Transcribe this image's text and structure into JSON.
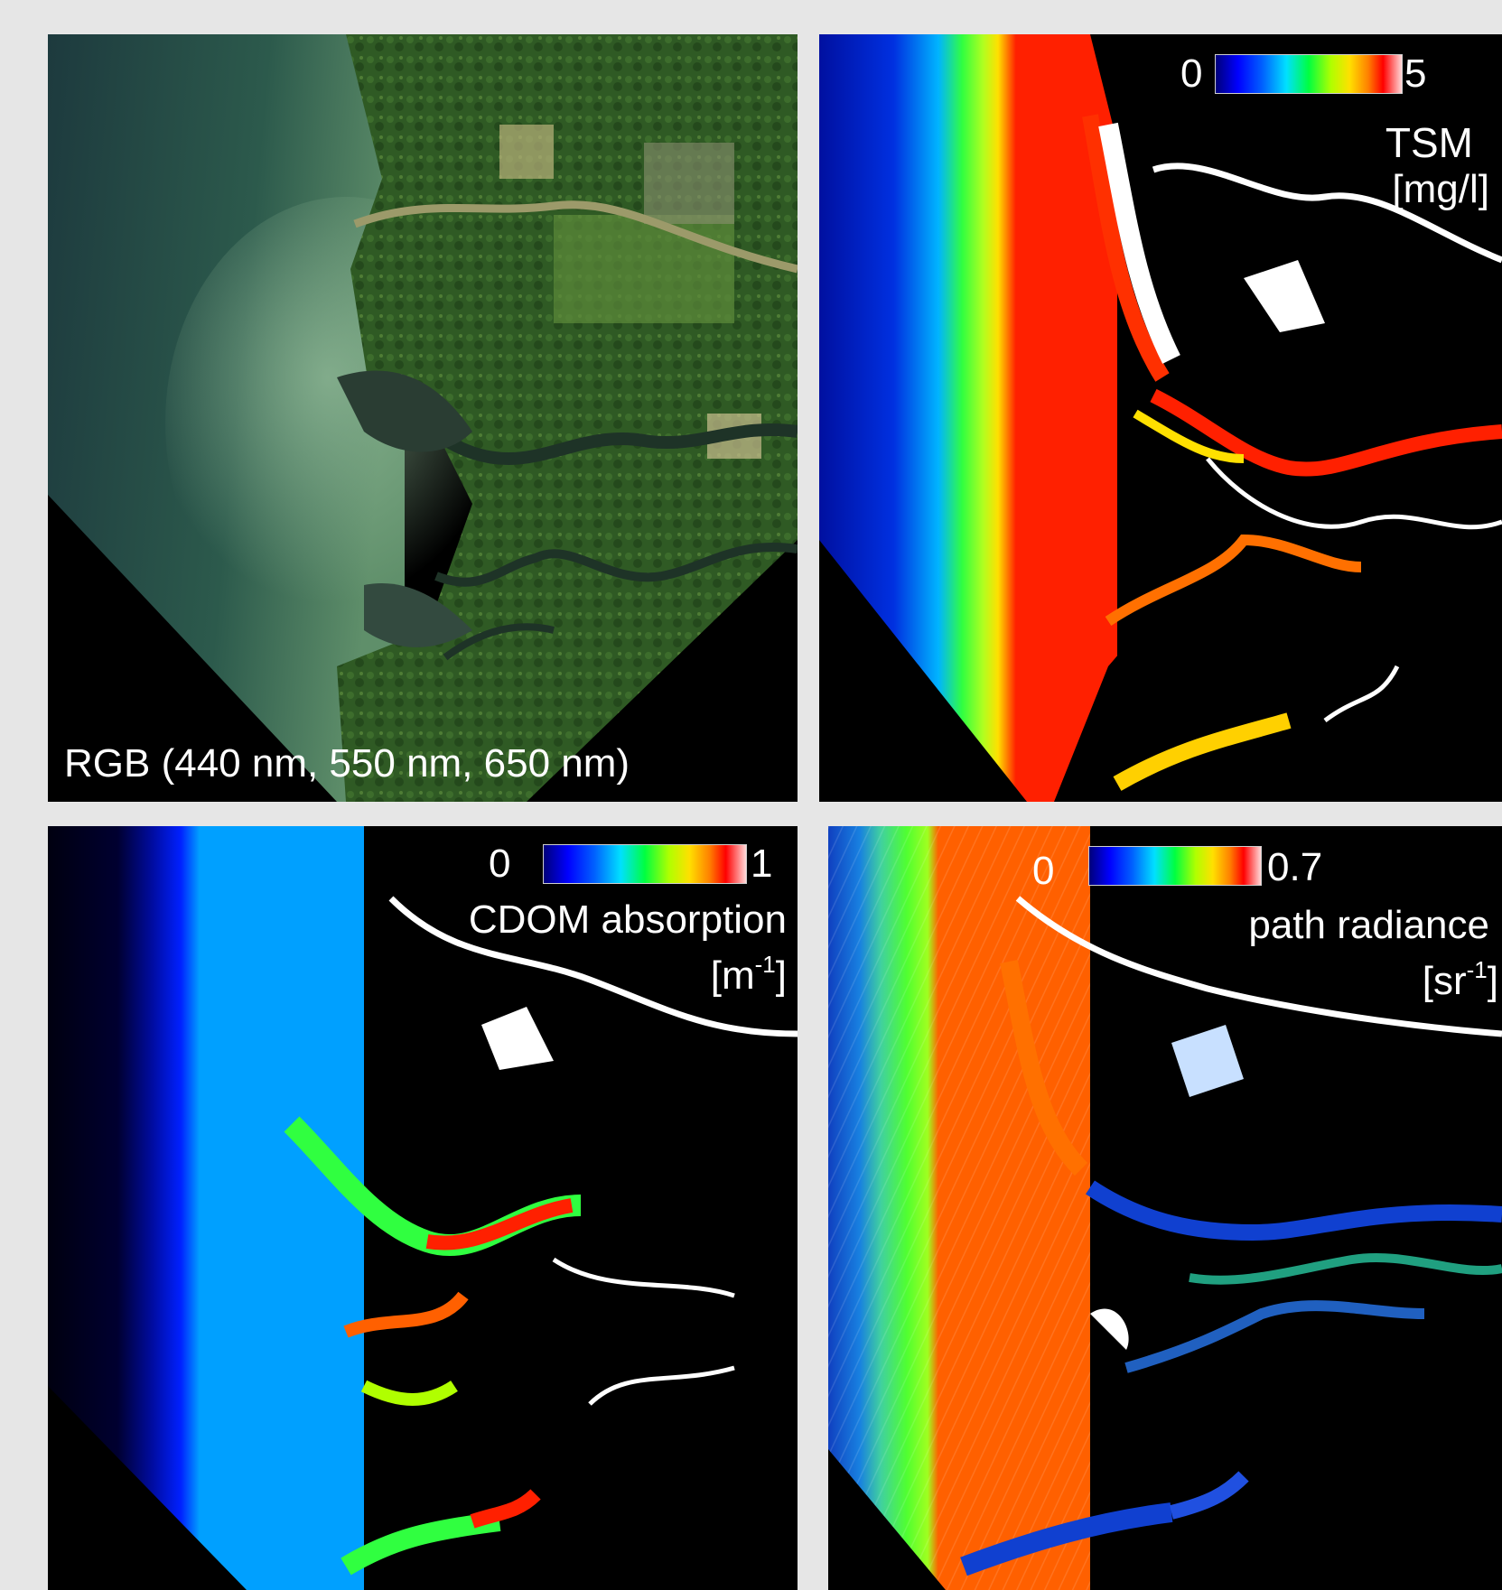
{
  "panels": {
    "rgb": {
      "caption": "RGB (440 nm, 550 nm, 650 nm)"
    },
    "tsm": {
      "scale_min": "0",
      "scale_max": "5",
      "title": "TSM",
      "unit": "[mg/l]"
    },
    "cdom": {
      "scale_min": "0",
      "scale_max": "1",
      "title": "CDOM absorption",
      "unit_base": "[m",
      "unit_exp": "-1",
      "unit_close": "]"
    },
    "path": {
      "scale_min": "0",
      "scale_max": "0.7",
      "title": "path radiance",
      "unit_base": "[sr",
      "unit_exp": "-1",
      "unit_close": "]"
    }
  },
  "colors": {
    "background": "#e6e6e6",
    "land": "#000000",
    "colormap": [
      "#00007a",
      "#0000ff",
      "#00e0ff",
      "#00ff40",
      "#ffe000",
      "#ff0000",
      "#ffd8d8"
    ]
  }
}
